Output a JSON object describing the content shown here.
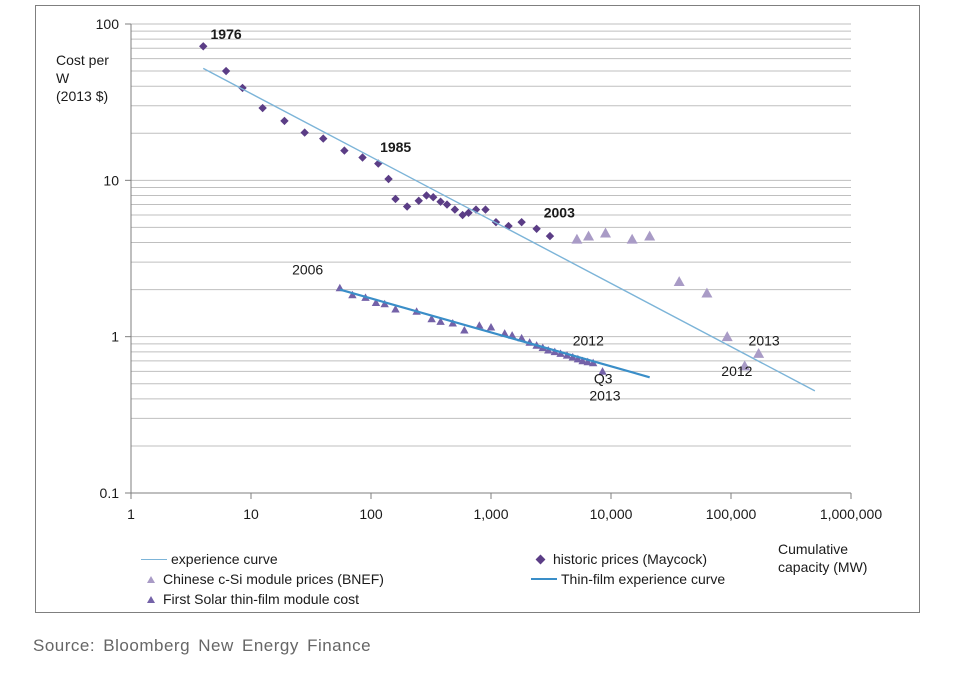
{
  "source": "Source:  Bloomberg  New Energy Finance",
  "colors": {
    "historic": "#5b3d86",
    "chinese": "#a99bc6",
    "firstsolar": "#7462a8",
    "experience": "#7cb4d8",
    "thinfilm": "#3a8ec8",
    "grid": "#bfbfbf"
  },
  "chart_data": {
    "type": "scatter",
    "x_scale": "log",
    "y_scale": "log",
    "xlim": [
      1,
      1000000
    ],
    "ylim": [
      0.1,
      100
    ],
    "grid": "horizontal",
    "y_ticks": [
      {
        "v": 100,
        "label": "100"
      },
      {
        "v": 10,
        "label": "10"
      },
      {
        "v": 1,
        "label": "1"
      },
      {
        "v": 0.1,
        "label": "0.1"
      }
    ],
    "x_ticks": [
      {
        "v": 1,
        "label": "1"
      },
      {
        "v": 10,
        "label": "10"
      },
      {
        "v": 100,
        "label": "100"
      },
      {
        "v": 1000,
        "label": "1,000"
      },
      {
        "v": 10000,
        "label": "10,000"
      },
      {
        "v": 100000,
        "label": "100,000"
      },
      {
        "v": 1000000,
        "label": "1,000,000"
      }
    ],
    "ylabel": [
      "Cost per",
      "W",
      "(2013 $)"
    ],
    "xlabel": [
      "Cumulative",
      "capacity (MW)"
    ],
    "series": [
      {
        "name": "historic prices (Maycock)",
        "marker": "diamond",
        "points": [
          [
            4,
            72
          ],
          [
            6.2,
            50
          ],
          [
            8.5,
            39
          ],
          [
            12.5,
            29
          ],
          [
            19,
            24
          ],
          [
            28,
            20.2
          ],
          [
            40,
            18.5
          ],
          [
            60,
            15.5
          ],
          [
            85,
            14
          ],
          [
            115,
            12.8
          ],
          [
            140,
            10.2
          ],
          [
            160,
            7.6
          ],
          [
            200,
            6.8
          ],
          [
            250,
            7.4
          ],
          [
            290,
            8
          ],
          [
            330,
            7.8
          ],
          [
            380,
            7.3
          ],
          [
            430,
            7
          ],
          [
            500,
            6.5
          ],
          [
            580,
            6
          ],
          [
            650,
            6.2
          ],
          [
            750,
            6.5
          ],
          [
            900,
            6.5
          ],
          [
            1100,
            5.4
          ],
          [
            1400,
            5.1
          ],
          [
            1800,
            5.4
          ],
          [
            2400,
            4.9
          ],
          [
            3100,
            4.4
          ]
        ]
      },
      {
        "name": "Chinese c-Si module prices (BNEF)",
        "marker": "triangle",
        "points": [
          [
            5200,
            4.2
          ],
          [
            6500,
            4.4
          ],
          [
            9000,
            4.6
          ],
          [
            15000,
            4.2
          ],
          [
            21000,
            4.4
          ],
          [
            37000,
            2.25
          ],
          [
            63000,
            1.9
          ],
          [
            93000,
            1.0
          ],
          [
            130000,
            0.65
          ],
          [
            170000,
            0.78
          ]
        ]
      },
      {
        "name": "First Solar thin-film module cost",
        "marker": "triangle",
        "points": [
          [
            55,
            2.05
          ],
          [
            70,
            1.85
          ],
          [
            90,
            1.78
          ],
          [
            110,
            1.65
          ],
          [
            130,
            1.62
          ],
          [
            160,
            1.5
          ],
          [
            240,
            1.45
          ],
          [
            320,
            1.3
          ],
          [
            380,
            1.25
          ],
          [
            480,
            1.22
          ],
          [
            600,
            1.1
          ],
          [
            800,
            1.18
          ],
          [
            1000,
            1.15
          ],
          [
            1300,
            1.05
          ],
          [
            1500,
            1.02
          ],
          [
            1800,
            0.98
          ],
          [
            2100,
            0.92
          ],
          [
            2400,
            0.88
          ],
          [
            2700,
            0.85
          ],
          [
            3000,
            0.82
          ],
          [
            3400,
            0.8
          ],
          [
            3800,
            0.78
          ],
          [
            4300,
            0.76
          ],
          [
            4800,
            0.74
          ],
          [
            5300,
            0.72
          ],
          [
            5800,
            0.7
          ],
          [
            6400,
            0.69
          ],
          [
            7100,
            0.68
          ],
          [
            8500,
            0.6
          ]
        ]
      },
      {
        "name": "experience curve",
        "line": true,
        "points": [
          [
            4,
            52
          ],
          [
            500000,
            0.45
          ]
        ]
      },
      {
        "name": "Thin-film experience curve",
        "line": true,
        "points": [
          [
            55,
            2.0
          ],
          [
            21000,
            0.55
          ]
        ]
      }
    ],
    "annotations": [
      {
        "text": "1976",
        "x": 4.6,
        "y": 80,
        "bold": true
      },
      {
        "text": "1985",
        "x": 119,
        "y": 15.2,
        "bold": true
      },
      {
        "text": "2003",
        "x": 2750,
        "y": 5.8,
        "bold": true
      },
      {
        "text": "2006",
        "x": 22,
        "y": 2.5,
        "bold": false
      },
      {
        "text": "2012",
        "x": 4800,
        "y": 0.88,
        "bold": false
      },
      {
        "text": "Q3",
        "x": 7200,
        "y": 0.5,
        "bold": false
      },
      {
        "text": "2013",
        "x": 6600,
        "y": 0.39,
        "bold": false
      },
      {
        "text": "2013",
        "x": 140000,
        "y": 0.88,
        "bold": false
      },
      {
        "text": "2012",
        "x": 83000,
        "y": 0.56,
        "bold": false
      }
    ]
  },
  "legend": [
    {
      "label": "experience curve",
      "swatch": "line",
      "color_key": "experience"
    },
    {
      "label": "Chinese c-Si module prices (BNEF)",
      "swatch": "triangle",
      "color_key": "chinese"
    },
    {
      "label": "First Solar thin-film module cost",
      "swatch": "triangle",
      "color_key": "firstsolar"
    },
    {
      "label": "historic prices (Maycock)",
      "swatch": "diamond",
      "color_key": "historic"
    },
    {
      "label": "Thin-film experience curve",
      "swatch": "line",
      "color_key": "thinfilm"
    }
  ]
}
